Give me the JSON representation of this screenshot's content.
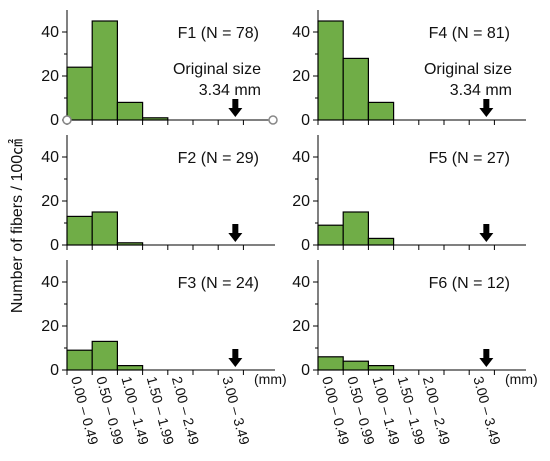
{
  "figure": {
    "ylabel_main": "Number of fibers / 100",
    "ylabel_unit": "㎠",
    "x_unit": "(mm)"
  },
  "chart_data": [
    {
      "type": "bar",
      "panel": "F1",
      "label": "F1 (N = 78)",
      "categories": [
        "0.00 – 0.49",
        "0.50 – 0.99",
        "1.00 – 1.49",
        "1.50 – 1.99",
        "2.00 – 2.49",
        "3.00 – 3.49"
      ],
      "values": [
        24,
        45,
        8,
        1,
        0,
        0
      ],
      "ylim": [
        0,
        50
      ],
      "yticks": [
        0,
        20,
        40
      ],
      "annotation": [
        "Original size",
        "3.34 mm"
      ],
      "arrow_x": 3.34,
      "selected": true
    },
    {
      "type": "bar",
      "panel": "F2",
      "label": "F2 (N = 29)",
      "categories": [
        "0.00 – 0.49",
        "0.50 – 0.99",
        "1.00 – 1.49",
        "1.50 – 1.99",
        "2.00 – 2.49",
        "3.00 – 3.49"
      ],
      "values": [
        13,
        15,
        1,
        0,
        0,
        0
      ],
      "ylim": [
        0,
        50
      ],
      "yticks": [
        0,
        20,
        40
      ],
      "arrow_x": 3.34
    },
    {
      "type": "bar",
      "panel": "F3",
      "label": "F3 (N = 24)",
      "categories": [
        "0.00 – 0.49",
        "0.50 – 0.99",
        "1.00 – 1.49",
        "1.50 – 1.99",
        "2.00 – 2.49",
        "3.00 – 3.49"
      ],
      "values": [
        9,
        13,
        2,
        0,
        0,
        0
      ],
      "ylim": [
        0,
        50
      ],
      "yticks": [
        0,
        20,
        40
      ],
      "arrow_x": 3.34,
      "show_xticks": true
    },
    {
      "type": "bar",
      "panel": "F4",
      "label": "F4 (N = 81)",
      "categories": [
        "0.00 – 0.49",
        "0.50 – 0.99",
        "1.00 – 1.49",
        "1.50 – 1.99",
        "2.00 – 2.49",
        "3.00 – 3.49"
      ],
      "values": [
        45,
        28,
        8,
        0,
        0,
        0
      ],
      "ylim": [
        0,
        50
      ],
      "yticks": [
        0,
        20,
        40
      ],
      "annotation": [
        "Original size",
        "3.34 mm"
      ],
      "arrow_x": 3.34
    },
    {
      "type": "bar",
      "panel": "F5",
      "label": "F5 (N = 27)",
      "categories": [
        "0.00 – 0.49",
        "0.50 – 0.99",
        "1.00 – 1.49",
        "1.50 – 1.99",
        "2.00 – 2.49",
        "3.00 – 3.49"
      ],
      "values": [
        9,
        15,
        3,
        0,
        0,
        0
      ],
      "ylim": [
        0,
        50
      ],
      "yticks": [
        0,
        20,
        40
      ],
      "arrow_x": 3.34
    },
    {
      "type": "bar",
      "panel": "F6",
      "label": "F6 (N = 12)",
      "categories": [
        "0.00 – 0.49",
        "0.50 – 0.99",
        "1.00 – 1.49",
        "1.50 – 1.99",
        "2.00 – 2.49",
        "3.00 – 3.49"
      ],
      "values": [
        6,
        4,
        2,
        0,
        0,
        0
      ],
      "ylim": [
        0,
        50
      ],
      "yticks": [
        0,
        20,
        40
      ],
      "arrow_x": 3.34,
      "show_xticks": true
    }
  ]
}
